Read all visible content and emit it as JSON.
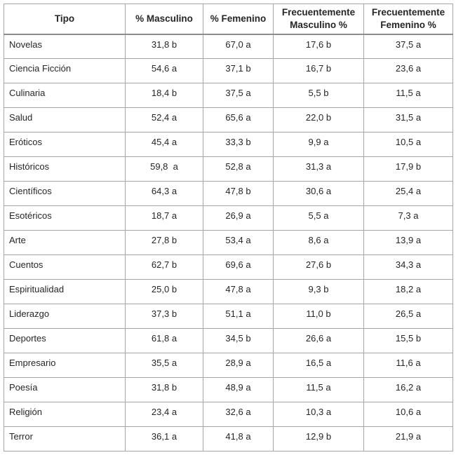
{
  "table": {
    "columns": [
      "Tipo",
      "% Masculino",
      "% Femenino",
      "Frecuentemente Masculino %",
      "Frecuentemente Femenino %"
    ],
    "rows": [
      [
        "Novelas",
        "31,8 b",
        "67,0 a",
        "17,6 b",
        "37,5 a"
      ],
      [
        "Ciencia Ficción",
        "54,6 a",
        "37,1 b",
        "16,7 b",
        "23,6 a"
      ],
      [
        "Culinaria",
        "18,4 b",
        "37,5 a",
        "5,5 b",
        "11,5 a"
      ],
      [
        "Salud",
        "52,4 a",
        "65,6 a",
        "22,0 b",
        "31,5 a"
      ],
      [
        "Eróticos",
        "45,4 a",
        "33,3 b",
        "9,9 a",
        "10,5 a"
      ],
      [
        "Históricos",
        "59,8  a",
        "52,8 a",
        "31,3 a",
        "17,9 b"
      ],
      [
        "Científicos",
        "64,3 a",
        "47,8 b",
        "30,6 a",
        "25,4 a"
      ],
      [
        "Esotéricos",
        "18,7 a",
        "26,9 a",
        "5,5 a",
        "7,3 a"
      ],
      [
        "Arte",
        "27,8 b",
        "53,4 a",
        "8,6 a",
        "13,9 a"
      ],
      [
        "Cuentos",
        "62,7 b",
        "69,6 a",
        "27,6 b",
        "34,3 a"
      ],
      [
        "Espiritualidad",
        "25,0 b",
        "47,8 a",
        "9,3 b",
        "18,2 a"
      ],
      [
        "Liderazgo",
        "37,3 b",
        "51,1 a",
        "11,0 b",
        "26,5 a"
      ],
      [
        "Deportes",
        "61,8 a",
        "34,5 b",
        "26,6 a",
        "15,5 b"
      ],
      [
        "Empresario",
        "35,5 a",
        "28,9 a",
        "16,5 a",
        "11,6 a"
      ],
      [
        "Poesía",
        "31,8 b",
        "48,9 a",
        "11,5 a",
        "16,2 a"
      ],
      [
        "Religión",
        "23,4 a",
        "32,6 a",
        "10,3 a",
        "10,6 a"
      ],
      [
        "Terror",
        "36,1 a",
        "41,8 a",
        "12,9 b",
        "21,9 a"
      ]
    ],
    "colors": {
      "border": "#a6a6a6",
      "header_separator": "#8c8c8c",
      "text": "#262626",
      "background": "#ffffff"
    }
  }
}
